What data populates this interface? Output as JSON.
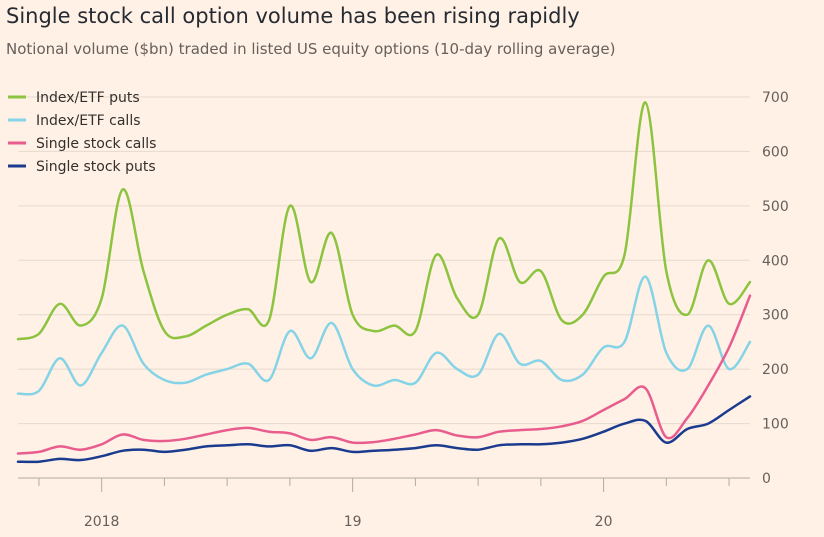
{
  "title": "Single stock call option volume has been rising rapidly",
  "subtitle": "Notional volume ($bn) traded in listed US equity options (10-day rolling average)",
  "chart_data": {
    "type": "line",
    "title": "Single stock call option volume has been rising rapidly",
    "subtitle": "Notional volume ($bn) traded in listed US equity options (10-day rolling average)",
    "ylim": [
      0,
      700
    ],
    "yticks": [
      0,
      100,
      200,
      300,
      400,
      500,
      600,
      700
    ],
    "yticklabels": [
      "0",
      "100",
      "200",
      "300",
      "400",
      "500",
      "600",
      "700"
    ],
    "xticklabels": [
      "2018",
      "19",
      "20"
    ],
    "xlim": [
      "2017-09",
      "2020-08"
    ],
    "grid": "horizontal",
    "legend": "top-left",
    "x": [
      "2017-09",
      "2017-10",
      "2017-11",
      "2017-12",
      "2018-01",
      "2018-02",
      "2018-03",
      "2018-04",
      "2018-05",
      "2018-06",
      "2018-07",
      "2018-08",
      "2018-09",
      "2018-10",
      "2018-11",
      "2018-12",
      "2019-01",
      "2019-02",
      "2019-03",
      "2019-04",
      "2019-05",
      "2019-06",
      "2019-07",
      "2019-08",
      "2019-09",
      "2019-10",
      "2019-11",
      "2019-12",
      "2020-01",
      "2020-02",
      "2020-03",
      "2020-04",
      "2020-05",
      "2020-06",
      "2020-07",
      "2020-08"
    ],
    "series": [
      {
        "name": "Index/ETF puts",
        "color": "#8cc33f",
        "values": [
          255,
          265,
          320,
          280,
          330,
          530,
          380,
          270,
          260,
          280,
          300,
          310,
          290,
          500,
          360,
          450,
          300,
          270,
          280,
          270,
          410,
          330,
          300,
          440,
          360,
          380,
          290,
          300,
          370,
          410,
          690,
          380,
          300,
          400,
          320,
          360
        ]
      },
      {
        "name": "Index/ETF calls",
        "color": "#85d3e6",
        "values": [
          155,
          160,
          220,
          170,
          230,
          280,
          210,
          180,
          175,
          190,
          200,
          210,
          180,
          270,
          220,
          285,
          200,
          170,
          180,
          175,
          230,
          200,
          190,
          265,
          210,
          215,
          180,
          190,
          240,
          250,
          370,
          230,
          200,
          280,
          200,
          250
        ]
      },
      {
        "name": "Single stock calls",
        "color": "#e85d8e",
        "values": [
          45,
          48,
          58,
          52,
          62,
          80,
          70,
          68,
          72,
          80,
          88,
          92,
          85,
          82,
          70,
          75,
          65,
          66,
          72,
          80,
          88,
          78,
          75,
          85,
          88,
          90,
          95,
          105,
          125,
          145,
          165,
          75,
          110,
          170,
          240,
          335
        ]
      },
      {
        "name": "Single stock puts",
        "color": "#1b3b8f",
        "values": [
          30,
          30,
          35,
          33,
          40,
          50,
          52,
          48,
          52,
          58,
          60,
          62,
          58,
          60,
          50,
          55,
          48,
          50,
          52,
          55,
          60,
          55,
          52,
          60,
          62,
          62,
          65,
          72,
          85,
          100,
          105,
          65,
          90,
          100,
          125,
          150
        ]
      }
    ]
  }
}
